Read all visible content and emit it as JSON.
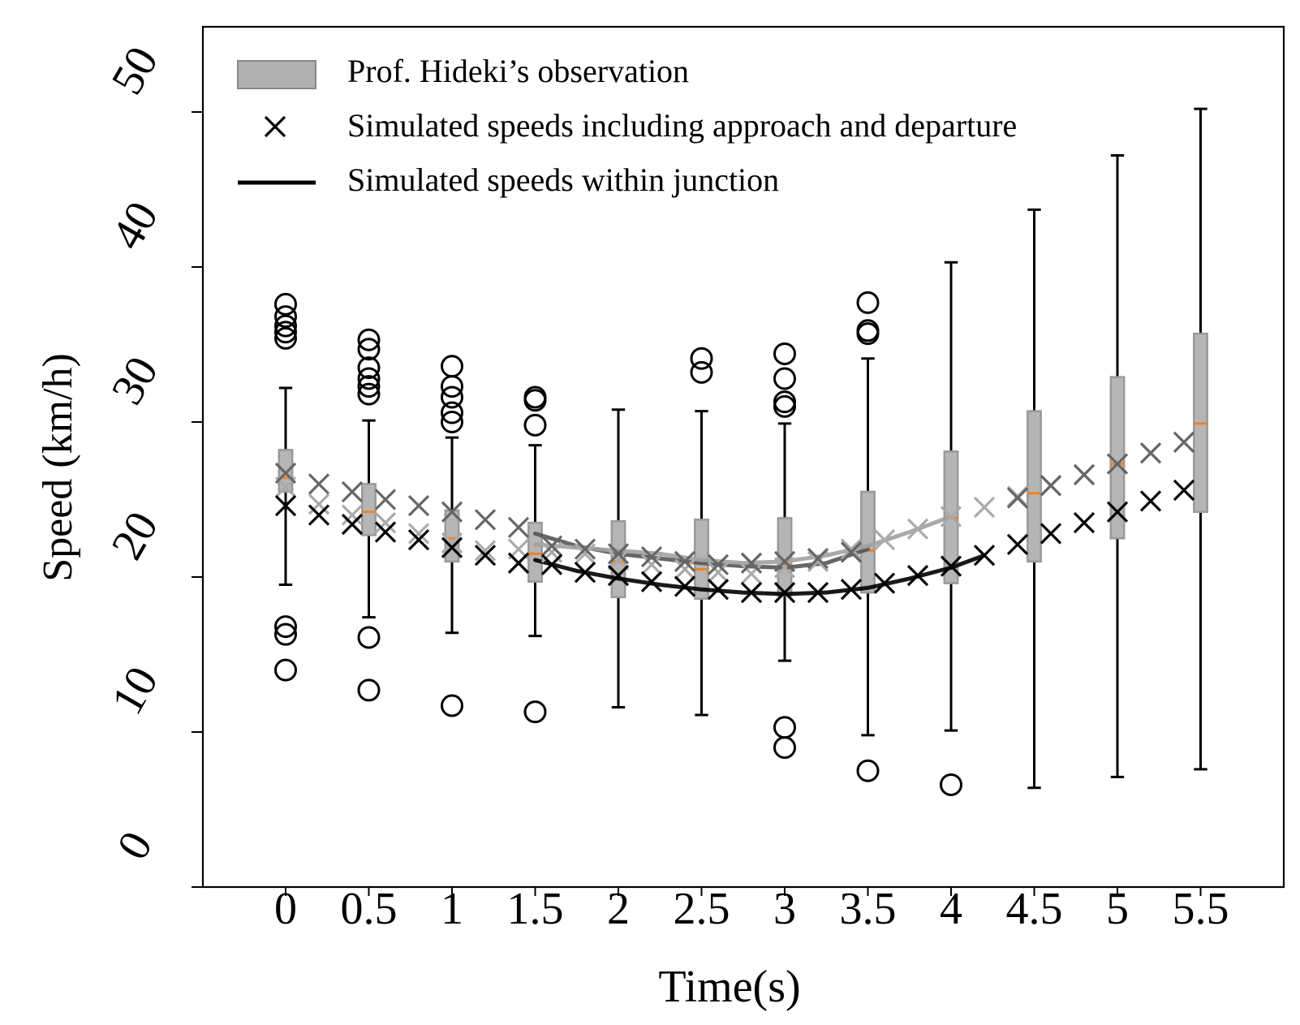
{
  "chart_data": {
    "type": "box",
    "xlabel": "Time(s)",
    "ylabel": "Speed (km/h)",
    "xlim": [
      -0.5,
      6.0
    ],
    "ylim": [
      0,
      55
    ],
    "x_ticks": [
      0,
      0.5,
      1,
      1.5,
      2,
      2.5,
      3,
      3.5,
      4,
      4.5,
      5,
      5.5
    ],
    "x_tick_labels": [
      "0",
      "0.5",
      "1",
      "1.5",
      "2",
      "2.5",
      "3",
      "3.5",
      "4",
      "4.5",
      "5",
      "5.5"
    ],
    "y_ticks": [
      0,
      10,
      20,
      30,
      40,
      50
    ],
    "y_tick_labels": [
      "0",
      "10",
      "20",
      "30",
      "40",
      "50"
    ],
    "legend": {
      "position": "top-left",
      "entries": [
        {
          "label": "Prof.  Hideki’s observation",
          "kind": "box"
        },
        {
          "label": "Simulated speeds including approach and departure",
          "kind": "marker"
        },
        {
          "label": "Simulated speeds within junction",
          "kind": "line"
        }
      ]
    },
    "observation_boxes": [
      {
        "x": 0,
        "q1": 25.5,
        "median": 26.4,
        "q3": 28.2,
        "whisker_low": 19.5,
        "whisker_high": 32.2,
        "outliers": [
          37.6,
          36.8,
          36.2,
          35.8,
          35.4,
          16.8,
          16.3,
          14.0
        ]
      },
      {
        "x": 0.5,
        "q1": 22.7,
        "median": 24.2,
        "q3": 26.0,
        "whisker_low": 17.4,
        "whisker_high": 30.1,
        "outliers": [
          35.3,
          34.7,
          33.5,
          32.8,
          32.3,
          31.8,
          16.1,
          12.7
        ]
      },
      {
        "x": 1,
        "q1": 21.0,
        "median": 22.5,
        "q3": 24.3,
        "whisker_low": 16.4,
        "whisker_high": 29.0,
        "outliers": [
          33.6,
          32.3,
          31.6,
          30.6,
          30.0,
          11.7
        ]
      },
      {
        "x": 1.5,
        "q1": 19.7,
        "median": 21.5,
        "q3": 23.5,
        "whisker_low": 16.2,
        "whisker_high": 28.5,
        "outliers": [
          31.6,
          31.4,
          29.8,
          11.3
        ]
      },
      {
        "x": 2,
        "q1": 18.7,
        "median": 21.0,
        "q3": 23.6,
        "whisker_low": 11.6,
        "whisker_high": 30.8,
        "outliers": []
      },
      {
        "x": 2.5,
        "q1": 18.6,
        "median": 20.5,
        "q3": 23.7,
        "whisker_low": 11.1,
        "whisker_high": 30.7,
        "outliers": [
          34.1,
          33.2
        ]
      },
      {
        "x": 3,
        "q1": 18.8,
        "median": 20.8,
        "q3": 23.8,
        "whisker_low": 14.6,
        "whisker_high": 29.9,
        "outliers": [
          34.4,
          32.8,
          31.3,
          31.0,
          10.3,
          9.0
        ]
      },
      {
        "x": 3.5,
        "q1": 19.0,
        "median": 21.7,
        "q3": 25.5,
        "whisker_low": 9.8,
        "whisker_high": 34.1,
        "outliers": [
          37.7,
          35.9,
          35.7,
          7.5
        ]
      },
      {
        "x": 4,
        "q1": 19.6,
        "median": 23.8,
        "q3": 28.1,
        "whisker_low": 10.1,
        "whisker_high": 40.3,
        "outliers": [
          6.6
        ]
      },
      {
        "x": 4.5,
        "q1": 21.0,
        "median": 25.4,
        "q3": 30.7,
        "whisker_low": 6.4,
        "whisker_high": 43.7,
        "outliers": []
      },
      {
        "x": 5,
        "q1": 22.5,
        "median": 27.3,
        "q3": 32.9,
        "whisker_low": 7.1,
        "whisker_high": 47.2,
        "outliers": []
      },
      {
        "x": 5.5,
        "q1": 24.2,
        "median": 29.9,
        "q3": 35.7,
        "whisker_low": 7.6,
        "whisker_high": 50.2,
        "outliers": []
      }
    ],
    "marker_series": [
      {
        "name": "black",
        "color": "#000000",
        "x": [
          0,
          0.2,
          0.4,
          0.6,
          0.8,
          1.0,
          1.2,
          1.4,
          1.6,
          1.8,
          2.0,
          2.2,
          2.4,
          2.6,
          2.8,
          3.0,
          3.2,
          3.4,
          3.6,
          3.8,
          4.0,
          4.2,
          4.4,
          4.6,
          4.8,
          5.0,
          5.2,
          5.4
        ],
        "y": [
          24.6,
          24.0,
          23.4,
          22.9,
          22.4,
          21.9,
          21.4,
          20.9,
          20.8,
          20.3,
          20.1,
          19.7,
          19.4,
          19.2,
          19.0,
          19.0,
          19.0,
          19.2,
          19.6,
          20.1,
          20.7,
          21.4,
          22.1,
          22.8,
          23.5,
          24.2,
          24.9,
          25.6
        ]
      },
      {
        "name": "dark gray",
        "color": "#666666",
        "x": [
          0,
          0.2,
          0.4,
          0.6,
          0.8,
          1.0,
          1.2,
          1.4,
          1.6,
          1.8,
          2.0,
          2.2,
          2.4,
          2.6,
          2.8,
          3.0,
          3.2,
          3.4
        ],
        "y": [
          26.7,
          26.0,
          25.5,
          25.0,
          24.6,
          24.2,
          23.7,
          23.2,
          22.0,
          21.8,
          21.5,
          21.3,
          21.0,
          20.8,
          20.9,
          21.0,
          21.2,
          21.6
        ]
      },
      {
        "name": "dark gray tail",
        "color": "#666666",
        "x": [
          4.4,
          4.6,
          4.8,
          5.0,
          5.2,
          5.4
        ],
        "y": [
          25.1,
          25.9,
          26.6,
          27.3,
          28.0,
          28.7
        ]
      },
      {
        "name": "light gray",
        "color": "#aaaaaa",
        "x": [
          0,
          0.2,
          0.4,
          0.6,
          0.8,
          1.0,
          1.2,
          1.4,
          1.6,
          1.8,
          2.0,
          2.2,
          2.4,
          2.6,
          2.8,
          3.0,
          3.2,
          3.4,
          3.6,
          3.8,
          4.0,
          4.2,
          4.4,
          4.6,
          4.8,
          5.0,
          5.2,
          5.4
        ],
        "y": [
          25.8,
          24.7,
          24.0,
          23.5,
          22.8,
          22.2,
          21.7,
          21.8,
          21.6,
          21.5,
          21.1,
          20.8,
          20.5,
          20.3,
          20.2,
          20.6,
          21.0,
          21.8,
          22.4,
          23.1,
          23.9,
          24.5,
          25.2,
          25.9,
          26.6,
          27.3,
          28.0,
          28.7
        ]
      }
    ],
    "line_series": [
      {
        "name": "black within junction",
        "color": "#000000",
        "x": [
          1.5,
          1.75,
          2.0,
          2.25,
          2.5,
          2.75,
          3.0,
          3.25,
          3.5,
          3.75,
          4.0,
          4.2
        ],
        "y": [
          21.1,
          20.4,
          19.9,
          19.5,
          19.2,
          19.0,
          18.9,
          19.0,
          19.3,
          19.9,
          20.6,
          21.4
        ]
      },
      {
        "name": "dark gray within junction",
        "color": "#555555",
        "x": [
          1.5,
          1.75,
          2.0,
          2.25,
          2.5,
          2.75,
          3.0,
          3.25,
          3.5
        ],
        "y": [
          22.8,
          22.0,
          21.5,
          21.2,
          20.9,
          20.7,
          20.6,
          20.9,
          21.8
        ]
      },
      {
        "name": "light gray within junction",
        "color": "#a0a0a0",
        "x": [
          1.5,
          1.75,
          2.0,
          2.25,
          2.5,
          2.75,
          3.0,
          3.25,
          3.5,
          3.75,
          4.0
        ],
        "y": [
          22.1,
          21.9,
          21.7,
          21.5,
          21.1,
          20.9,
          21.0,
          21.4,
          22.0,
          22.9,
          23.9
        ]
      }
    ]
  }
}
